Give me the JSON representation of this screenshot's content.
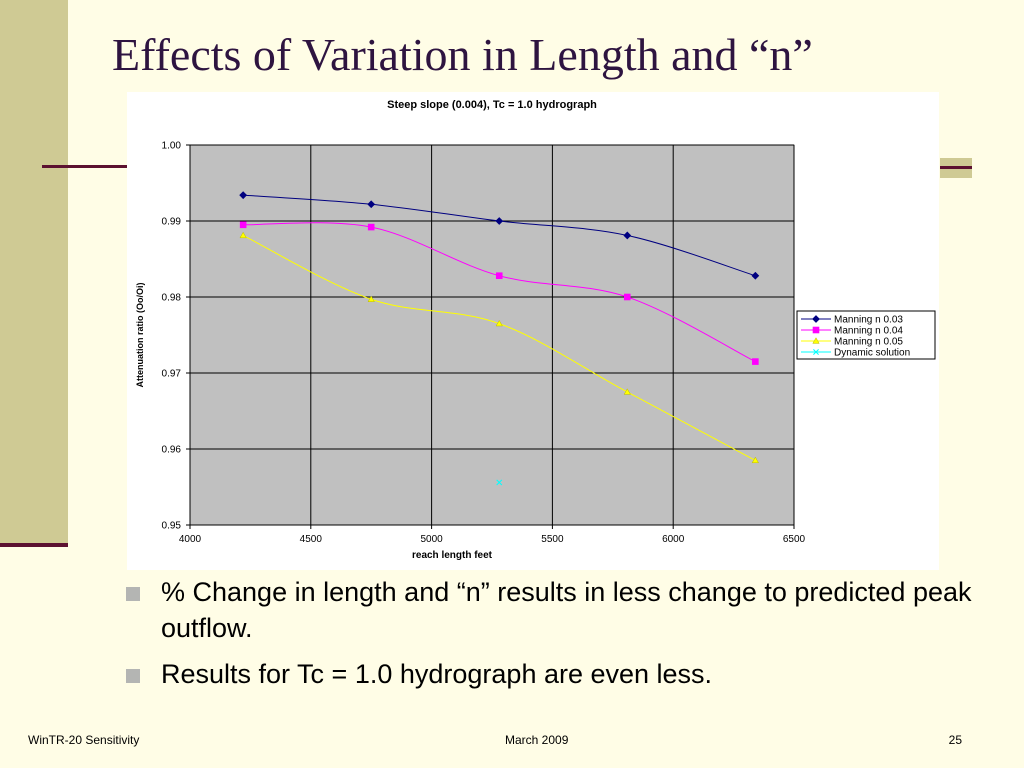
{
  "slide": {
    "title": "Effects of Variation in Length and “n”",
    "bullets": [
      "% Change in length and “n” results in less change to predicted peak outflow.",
      "Results for Tc = 1.0 hydrograph are even less."
    ],
    "footer": {
      "left": "WinTR-20 Sensitivity",
      "center": "March 2009",
      "right": "25"
    }
  },
  "chart_data": {
    "type": "line",
    "title": "Steep slope (0.004), Tc = 1.0 hydrograph",
    "xlabel": "reach length   feet",
    "ylabel": "Attenuation ratio  (Oo/Oi)",
    "xlim": [
      4000,
      6500
    ],
    "ylim": [
      0.95,
      1.0
    ],
    "xticks": [
      "4000",
      "4500",
      "5000",
      "5500",
      "6000",
      "6500"
    ],
    "yticks": [
      "0.95",
      "0.96",
      "0.97",
      "0.98",
      "0.99",
      "1.00"
    ],
    "grid": true,
    "legend": "right",
    "series": [
      {
        "name": "Manning n 0.03",
        "color": "#000080",
        "marker": "diamond",
        "x": [
          4220,
          4750,
          5280,
          5810,
          6340
        ],
        "y": [
          0.9934,
          0.9922,
          0.99,
          0.9881,
          0.9828
        ]
      },
      {
        "name": "Manning n 0.04",
        "color": "#ff00ff",
        "marker": "square",
        "x": [
          4220,
          4750,
          5280,
          5810,
          6340
        ],
        "y": [
          0.9895,
          0.9892,
          0.9828,
          0.98,
          0.9715
        ]
      },
      {
        "name": "Manning n 0.05",
        "color": "#ffff00",
        "marker": "triangle",
        "x": [
          4220,
          4750,
          5280,
          5810,
          6340
        ],
        "y": [
          0.9881,
          0.9797,
          0.9765,
          0.9675,
          0.9585
        ]
      },
      {
        "name": "Dynamic solution",
        "color": "#00ffff",
        "marker": "x",
        "x": [
          5280
        ],
        "y": [
          0.9556
        ]
      }
    ]
  }
}
